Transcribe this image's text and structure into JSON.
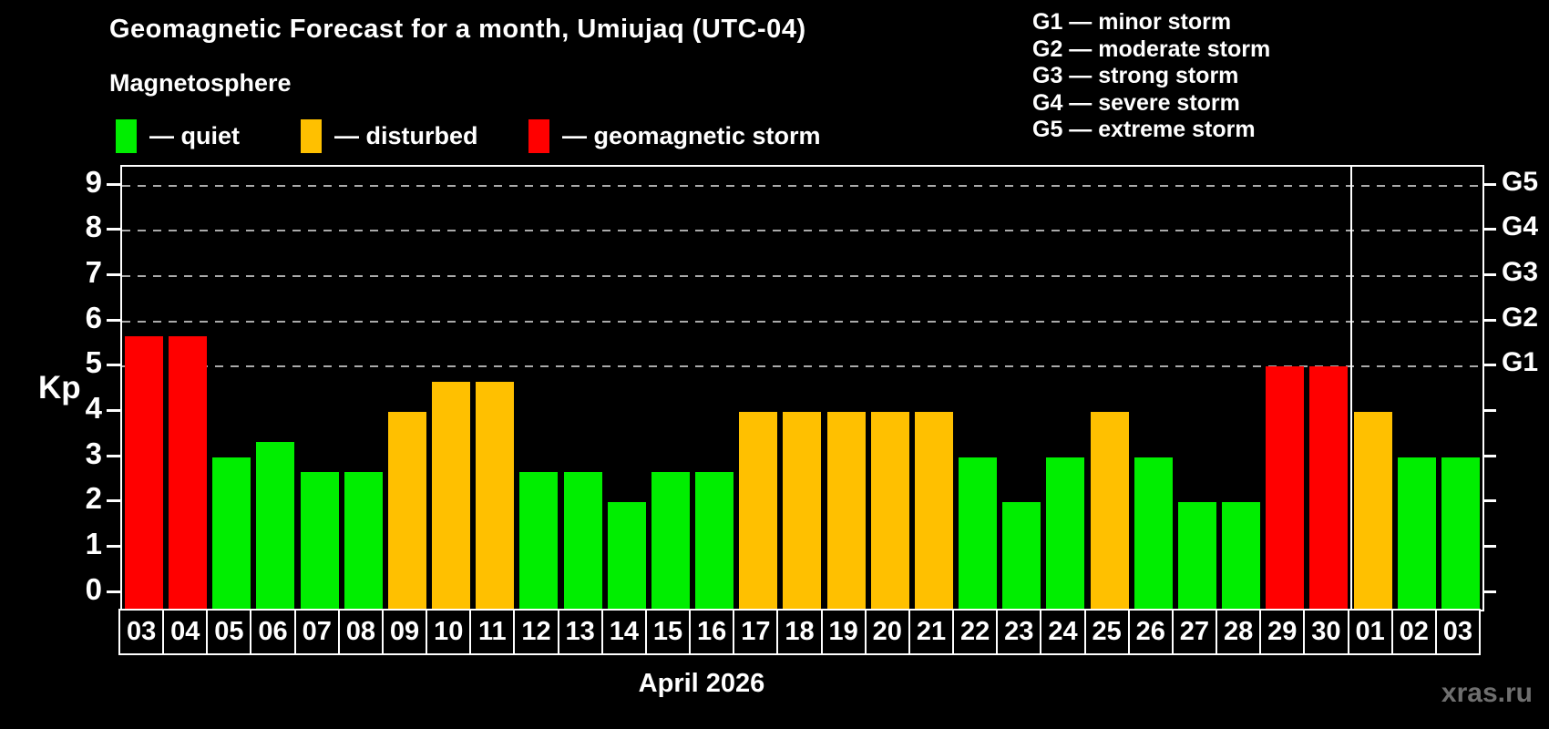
{
  "subtitle": "Magnetosphere",
  "watermark": "xras.ru",
  "legend": {
    "items": [
      {
        "label": "— quiet",
        "level": "quiet"
      },
      {
        "label": "— disturbed",
        "level": "disturbed"
      },
      {
        "label": "— geomagnetic storm",
        "level": "storm"
      }
    ]
  },
  "g_legend": {
    "lines": [
      "G1 — minor storm",
      "G2 — moderate storm",
      "G3 — strong storm",
      "G4 — severe storm",
      "G5 — extreme storm"
    ]
  },
  "colors": {
    "quiet": "#00ee00",
    "disturbed": "#ffc000",
    "storm": "#ff0000",
    "grid": "#aaaaaa",
    "frame": "#ffffff",
    "watermark": "#6f6f6f"
  },
  "chart_data": {
    "type": "bar",
    "title": "Geomagnetic Forecast for a month, Umiujaq (UTC-04)",
    "ylabel": "Kp",
    "xlabel": "April 2026",
    "categories": [
      "03",
      "04",
      "05",
      "06",
      "07",
      "08",
      "09",
      "10",
      "11",
      "12",
      "13",
      "14",
      "15",
      "16",
      "17",
      "18",
      "19",
      "20",
      "21",
      "22",
      "23",
      "24",
      "25",
      "26",
      "27",
      "28",
      "29",
      "30",
      "01",
      "02",
      "03"
    ],
    "values": [
      5.67,
      5.67,
      3,
      3.33,
      2.67,
      2.67,
      4,
      4.67,
      4.67,
      2.67,
      2.67,
      2,
      2.67,
      2.67,
      4,
      4,
      4,
      4,
      4,
      3,
      2,
      3,
      4,
      3,
      2,
      2,
      5,
      5,
      4,
      3,
      3
    ],
    "levels": [
      "storm",
      "storm",
      "quiet",
      "quiet",
      "quiet",
      "quiet",
      "disturbed",
      "disturbed",
      "disturbed",
      "quiet",
      "quiet",
      "quiet",
      "quiet",
      "quiet",
      "disturbed",
      "disturbed",
      "disturbed",
      "disturbed",
      "disturbed",
      "quiet",
      "quiet",
      "quiet",
      "disturbed",
      "quiet",
      "quiet",
      "quiet",
      "storm",
      "storm",
      "disturbed",
      "quiet",
      "quiet"
    ],
    "yticks": [
      0,
      1,
      2,
      3,
      4,
      5,
      6,
      7,
      8,
      9
    ],
    "ylim": [
      -0.37,
      9.42
    ],
    "gridlines_at": [
      5,
      6,
      7,
      8,
      9
    ],
    "right_axis": [
      {
        "kp": 5,
        "label": "G1"
      },
      {
        "kp": 6,
        "label": "G2"
      },
      {
        "kp": 7,
        "label": "G3"
      },
      {
        "kp": 8,
        "label": "G4"
      },
      {
        "kp": 9,
        "label": "G5"
      }
    ],
    "month_boundary_after_index": 27,
    "legend_position": "top",
    "grid": "dashed-horizontal"
  }
}
